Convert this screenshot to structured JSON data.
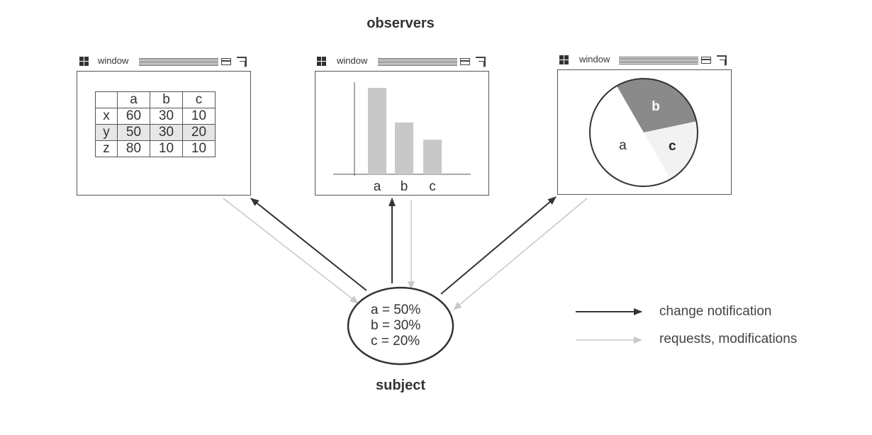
{
  "title": "observers",
  "subject_label": "subject",
  "window_label": "window",
  "table_window": {
    "columns": [
      "",
      "a",
      "b",
      "c"
    ],
    "rows": [
      {
        "label": "x",
        "values": [
          "60",
          "30",
          "10"
        ]
      },
      {
        "label": "y",
        "values": [
          "50",
          "30",
          "20"
        ]
      },
      {
        "label": "z",
        "values": [
          "80",
          "10",
          "10"
        ]
      }
    ]
  },
  "chart_data": [
    {
      "type": "bar",
      "categories": [
        "a",
        "b",
        "c"
      ],
      "values": [
        50,
        30,
        20
      ],
      "color": "#c8c8c8"
    },
    {
      "type": "pie",
      "categories": [
        "a",
        "b",
        "c"
      ],
      "values": [
        50,
        30,
        20
      ],
      "colors": [
        "#ffffff",
        "#8a8a8a",
        "#f2f2f2"
      ]
    }
  ],
  "subject": {
    "lines": [
      "a = 50%",
      "b = 30%",
      "c = 20%"
    ]
  },
  "legend": {
    "change_notification": "change notification",
    "requests": "requests, modifications",
    "change_color": "#333333",
    "requests_color": "#c8c8c8"
  }
}
